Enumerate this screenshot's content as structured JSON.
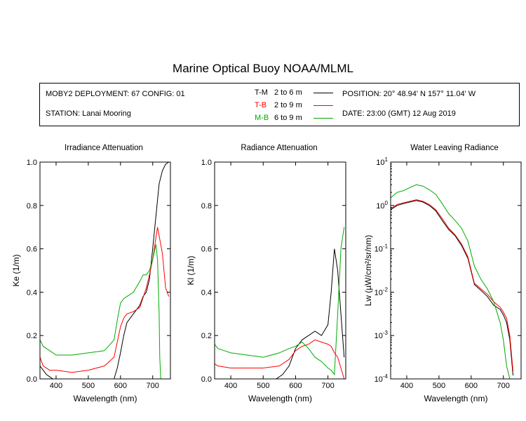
{
  "title": "Marine Optical Buoy NOAA/MLML",
  "info": {
    "deployment": "MOBY2 DEPLOYMENT: 67 CONFIG: 01",
    "station": "STATION: Lanai Mooring",
    "position": "POSITION: 20° 48.94' N   157° 11.04' W",
    "date": "DATE: 23:00 (GMT) 12 Aug 2019",
    "legend": [
      {
        "code": "T-M",
        "range": "2 to 6  m",
        "color": "#000000"
      },
      {
        "code": "T-B",
        "range": "2 to 9  m",
        "color": "#ff0000"
      },
      {
        "code": "M-B",
        "range": "6 to 9  m",
        "color": "#00aa00"
      }
    ]
  },
  "chart_data": [
    {
      "type": "line",
      "title": "Irradiance Attenuation",
      "xlabel": "Wavelength (nm)",
      "ylabel": "Ke  (1/m)",
      "xlim": [
        350,
        755
      ],
      "ylim": [
        0,
        1.0
      ],
      "xticks": [
        400,
        500,
        600,
        700
      ],
      "yticks": [
        "0.0",
        "0.2",
        "0.4",
        "0.6",
        "0.8",
        "1.0"
      ],
      "series": [
        {
          "name": "T-M",
          "color": "#000000",
          "x": [
            350,
            360,
            370,
            380,
            390,
            400,
            450,
            500,
            550,
            580,
            590,
            600,
            610,
            620,
            640,
            660,
            670,
            680,
            690,
            700,
            710,
            720,
            730,
            740,
            750
          ],
          "y": [
            0.06,
            0.04,
            0.02,
            0.01,
            0.0,
            0.0,
            0.0,
            0.0,
            0.0,
            0.0,
            0.05,
            0.12,
            0.2,
            0.26,
            0.3,
            0.34,
            0.38,
            0.4,
            0.46,
            0.6,
            0.75,
            0.9,
            0.96,
            0.99,
            1.0
          ]
        },
        {
          "name": "T-B",
          "color": "#ff0000",
          "x": [
            350,
            360,
            380,
            400,
            450,
            500,
            550,
            580,
            590,
            600,
            610,
            620,
            640,
            660,
            680,
            690,
            700,
            710,
            715,
            720,
            730,
            740,
            750
          ],
          "y": [
            0.1,
            0.06,
            0.04,
            0.04,
            0.03,
            0.04,
            0.06,
            0.1,
            0.17,
            0.24,
            0.28,
            0.3,
            0.31,
            0.33,
            0.42,
            0.48,
            0.55,
            0.65,
            0.7,
            0.66,
            0.58,
            0.42,
            0.38
          ]
        },
        {
          "name": "M-B",
          "color": "#00aa00",
          "x": [
            350,
            360,
            380,
            400,
            450,
            500,
            550,
            580,
            590,
            600,
            610,
            620,
            640,
            660,
            670,
            680,
            690,
            700,
            710,
            715,
            720,
            722,
            725
          ],
          "y": [
            0.18,
            0.15,
            0.13,
            0.11,
            0.11,
            0.12,
            0.13,
            0.18,
            0.27,
            0.35,
            0.37,
            0.38,
            0.4,
            0.45,
            0.48,
            0.48,
            0.5,
            0.55,
            0.62,
            0.55,
            0.3,
            0.1,
            0.0
          ]
        }
      ]
    },
    {
      "type": "line",
      "title": "Radiance Attenuation",
      "xlabel": "Wavelength (nm)",
      "ylabel": "Kl  (1/m)",
      "xlim": [
        350,
        755
      ],
      "ylim": [
        0,
        1.0
      ],
      "xticks": [
        400,
        500,
        600,
        700
      ],
      "yticks": [
        "0.0",
        "0.2",
        "0.4",
        "0.6",
        "0.8",
        "1.0"
      ],
      "series": [
        {
          "name": "T-M",
          "color": "#000000",
          "x": [
            350,
            400,
            450,
            500,
            540,
            560,
            580,
            600,
            620,
            640,
            660,
            680,
            700,
            710,
            720,
            730,
            740,
            750
          ],
          "y": [
            0.0,
            0.0,
            0.0,
            0.0,
            0.0,
            0.02,
            0.06,
            0.14,
            0.18,
            0.2,
            0.22,
            0.2,
            0.25,
            0.4,
            0.6,
            0.5,
            0.3,
            0.1
          ]
        },
        {
          "name": "T-B",
          "color": "#ff0000",
          "x": [
            350,
            360,
            400,
            450,
            500,
            550,
            580,
            600,
            620,
            640,
            660,
            680,
            700,
            710,
            720,
            730,
            740,
            750
          ],
          "y": [
            0.07,
            0.06,
            0.05,
            0.05,
            0.05,
            0.06,
            0.09,
            0.13,
            0.15,
            0.16,
            0.18,
            0.17,
            0.16,
            0.15,
            0.12,
            0.1,
            0.05,
            0.0
          ]
        },
        {
          "name": "M-B",
          "color": "#00aa00",
          "x": [
            350,
            360,
            380,
            400,
            450,
            500,
            550,
            580,
            600,
            620,
            640,
            660,
            680,
            700,
            710,
            720,
            730,
            740,
            750
          ],
          "y": [
            0.16,
            0.14,
            0.13,
            0.12,
            0.11,
            0.1,
            0.12,
            0.14,
            0.15,
            0.17,
            0.14,
            0.1,
            0.08,
            0.05,
            0.04,
            0.02,
            0.3,
            0.6,
            0.7
          ]
        }
      ]
    },
    {
      "type": "line",
      "title": "Water Leaving Radiance",
      "xlabel": "Wavelength (nm)",
      "ylabel": "Lw  (µW/cm²/sr/nm)",
      "xlim": [
        350,
        755
      ],
      "ylim": [
        0.0001,
        10
      ],
      "scale": "log",
      "xticks": [
        400,
        500,
        600,
        700
      ],
      "yticks": [
        {
          "base": "10",
          "exp": "1",
          "value": 10
        },
        {
          "base": "10",
          "exp": "0",
          "value": 1
        },
        {
          "base": "10",
          "exp": "-1",
          "value": 0.1
        },
        {
          "base": "10",
          "exp": "-2",
          "value": 0.01
        },
        {
          "base": "10",
          "exp": "-3",
          "value": 0.001
        },
        {
          "base": "10",
          "exp": "-4",
          "value": 0.0001
        }
      ],
      "series": [
        {
          "name": "T-M",
          "color": "#000000",
          "x": [
            350,
            370,
            390,
            410,
            430,
            450,
            470,
            490,
            510,
            530,
            550,
            570,
            590,
            610,
            630,
            650,
            670,
            690,
            700,
            710,
            720,
            730
          ],
          "y": [
            0.8,
            1.0,
            1.1,
            1.2,
            1.3,
            1.2,
            1.0,
            0.75,
            0.45,
            0.28,
            0.2,
            0.12,
            0.06,
            0.015,
            0.011,
            0.008,
            0.005,
            0.004,
            0.003,
            0.002,
            0.0008,
            0.00012
          ]
        },
        {
          "name": "T-B",
          "color": "#ff0000",
          "x": [
            350,
            370,
            390,
            410,
            430,
            450,
            470,
            490,
            510,
            530,
            550,
            570,
            590,
            610,
            630,
            650,
            670,
            690,
            700,
            710,
            720,
            730
          ],
          "y": [
            0.85,
            1.05,
            1.15,
            1.25,
            1.35,
            1.25,
            1.05,
            0.8,
            0.5,
            0.3,
            0.21,
            0.13,
            0.065,
            0.016,
            0.012,
            0.009,
            0.006,
            0.0045,
            0.0035,
            0.0025,
            0.001,
            0.00015
          ]
        },
        {
          "name": "M-B",
          "color": "#00aa00",
          "x": [
            350,
            370,
            390,
            410,
            430,
            450,
            470,
            490,
            510,
            530,
            550,
            570,
            590,
            610,
            630,
            650,
            670,
            690,
            700,
            710,
            720
          ],
          "y": [
            1.5,
            2.0,
            2.2,
            2.6,
            3.0,
            2.8,
            2.3,
            1.8,
            1.1,
            0.65,
            0.45,
            0.3,
            0.15,
            0.04,
            0.02,
            0.012,
            0.006,
            0.002,
            0.0008,
            0.0002,
            0.0001
          ]
        }
      ]
    }
  ]
}
